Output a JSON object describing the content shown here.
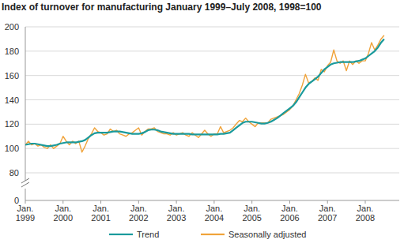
{
  "chart_data": {
    "type": "line",
    "title": "Index of turnover for manufacturing January 1999–July 2008, 1998=100",
    "categories": [
      "Jan. 1999",
      null,
      null,
      null,
      null,
      null,
      null,
      null,
      null,
      null,
      null,
      null,
      "Jan. 2000",
      null,
      null,
      null,
      null,
      null,
      null,
      null,
      null,
      null,
      null,
      null,
      "Jan. 2001",
      null,
      null,
      null,
      null,
      null,
      null,
      null,
      null,
      null,
      null,
      null,
      "Jan. 2002",
      null,
      null,
      null,
      null,
      null,
      null,
      null,
      null,
      null,
      null,
      null,
      "Jan. 2003",
      null,
      null,
      null,
      null,
      null,
      null,
      null,
      null,
      null,
      null,
      null,
      "Jan. 2004",
      null,
      null,
      null,
      null,
      null,
      null,
      null,
      null,
      null,
      null,
      null,
      "Jan. 2005",
      null,
      null,
      null,
      null,
      null,
      null,
      null,
      null,
      null,
      null,
      null,
      "Jan. 2006",
      null,
      null,
      null,
      null,
      null,
      null,
      null,
      null,
      null,
      null,
      null,
      "Jan. 2007",
      null,
      null,
      null,
      null,
      null,
      null,
      null,
      null,
      null,
      null,
      null,
      "Jan. 2008",
      null,
      null,
      null,
      null,
      null,
      null
    ],
    "series": [
      {
        "name": "Trend",
        "color": "#1a9a9c",
        "values": [
          103,
          103.5,
          104,
          104,
          103.5,
          103,
          102.5,
          102,
          102,
          102.5,
          103,
          104,
          104.5,
          105,
          105,
          105,
          105,
          105.5,
          106,
          107,
          109,
          111,
          112.5,
          113,
          113,
          113,
          113,
          113.5,
          114,
          114,
          114,
          113.5,
          113,
          112.5,
          112,
          112,
          112,
          112.5,
          113.5,
          115,
          115.5,
          115.5,
          115,
          114,
          113.5,
          113,
          112.5,
          112,
          112,
          112,
          112,
          112,
          112,
          111.5,
          111.5,
          111.5,
          111.5,
          111.5,
          111.5,
          111.5,
          111.5,
          111.5,
          112,
          112,
          112.5,
          113,
          115,
          117,
          119,
          121,
          122,
          122,
          122,
          121.5,
          121,
          120.5,
          120.5,
          121,
          122,
          123.5,
          125,
          127,
          129,
          131,
          133,
          135,
          138,
          142,
          146,
          150,
          153,
          155,
          157,
          159,
          162,
          165,
          167,
          169,
          170,
          170.5,
          171,
          171,
          171,
          171,
          171,
          171.5,
          172,
          173,
          174,
          176,
          178,
          180,
          183,
          187,
          190
        ]
      },
      {
        "name": "Seasonally adjusted",
        "color": "#f0a33a",
        "values": [
          103,
          106,
          103,
          104,
          102,
          103,
          101,
          100,
          103,
          100,
          102,
          104,
          110,
          106,
          103,
          106,
          104,
          106,
          97,
          102,
          108,
          112,
          117,
          114,
          113,
          111,
          112,
          116,
          114,
          115,
          112,
          111,
          110,
          112,
          113,
          115,
          117,
          111,
          114,
          116,
          116,
          117,
          114,
          113,
          112,
          112,
          111,
          113,
          111,
          112,
          113,
          111,
          110,
          113,
          111,
          109,
          112,
          115,
          112,
          110,
          112,
          112,
          118,
          113,
          114,
          115,
          117,
          120,
          123,
          122,
          125,
          122,
          120,
          118,
          121,
          121,
          121,
          121,
          124,
          125,
          126,
          127,
          128,
          130,
          132,
          135,
          140,
          145,
          152,
          161,
          154,
          155,
          158,
          156,
          165,
          163,
          168,
          171,
          181,
          172,
          170,
          172,
          164,
          172,
          169,
          172,
          170,
          172,
          172,
          178,
          187,
          181,
          185,
          190,
          193
        ]
      }
    ],
    "ylim": [
      80,
      200
    ],
    "yticks": [
      80,
      100,
      120,
      140,
      160,
      180,
      200
    ],
    "ybreak": 0,
    "grid": true,
    "legend": "bottom"
  }
}
